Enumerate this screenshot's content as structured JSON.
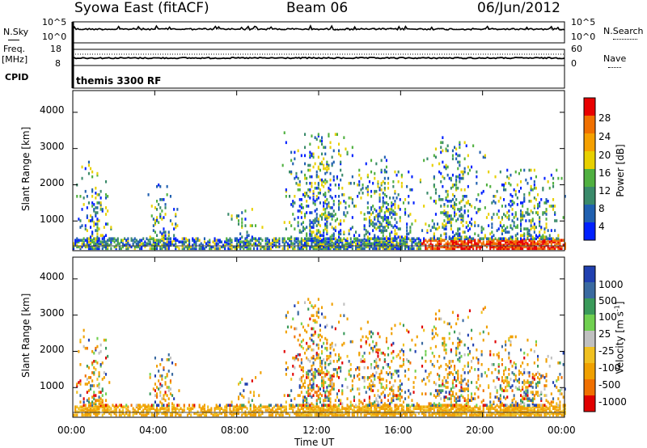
{
  "header": {
    "station": "Syowa East (fitACF)",
    "beam": "Beam 06",
    "date": "06/Jun/2012"
  },
  "top_panel": {
    "left_label": "N.Sky",
    "right_label": "N.Search",
    "y_ticks_left": [
      "10^5",
      "10^0"
    ],
    "y_ticks_right": [
      "10^5",
      "10^0"
    ]
  },
  "freq_panel": {
    "left_label_1": "Freq.",
    "left_label_2": "[MHz]",
    "right_label": "Nave",
    "y_ticks_left": [
      "18",
      "8"
    ],
    "y_ticks_right": [
      "60",
      "0"
    ]
  },
  "cpid_panel": {
    "left_label": "CPID",
    "program": "themis 3300 RF"
  },
  "colors": {
    "power": [
      "#0020ff",
      "#2060b0",
      "#3a8a6a",
      "#50b040",
      "#e8d000",
      "#f5a000",
      "#f07000",
      "#e80000"
    ],
    "velocity": [
      "#2040b0",
      "#3a6aa0",
      "#3a9a5a",
      "#70d050",
      "#c0c0c0",
      "#f0c020",
      "#f0a000",
      "#f07000",
      "#e00000"
    ]
  },
  "chart_data": [
    {
      "type": "heatmap",
      "name": "power",
      "ylabel": "Slant Range [km]",
      "y_ticks": [
        1000,
        2000,
        3000,
        4000
      ],
      "x_ticks": [
        "00:00",
        "04:00",
        "08:00",
        "12:00",
        "16:00",
        "20:00",
        "00:00"
      ],
      "xlim_hours": [
        0,
        24
      ],
      "ylim": [
        180,
        4600
      ],
      "colorbar": {
        "label": "Power [dB]",
        "ticks": [
          "4",
          "8",
          "12",
          "16",
          "20",
          "24",
          "28"
        ]
      }
    },
    {
      "type": "heatmap",
      "name": "velocity",
      "ylabel": "Slant Range [km]",
      "y_ticks": [
        1000,
        2000,
        3000,
        4000
      ],
      "x_ticks": [
        "00:00",
        "04:00",
        "08:00",
        "12:00",
        "16:00",
        "20:00",
        "00:00"
      ],
      "xlim_hours": [
        0,
        24
      ],
      "ylim": [
        180,
        4600
      ],
      "colorbar": {
        "label": "Velocity [m s",
        "label_sup": "-1",
        "label_end": "]",
        "ticks": [
          "1000",
          "500",
          "100",
          "25",
          "-25",
          "-100",
          "-500",
          "-1000"
        ]
      }
    }
  ],
  "xaxis_label": "Time UT"
}
